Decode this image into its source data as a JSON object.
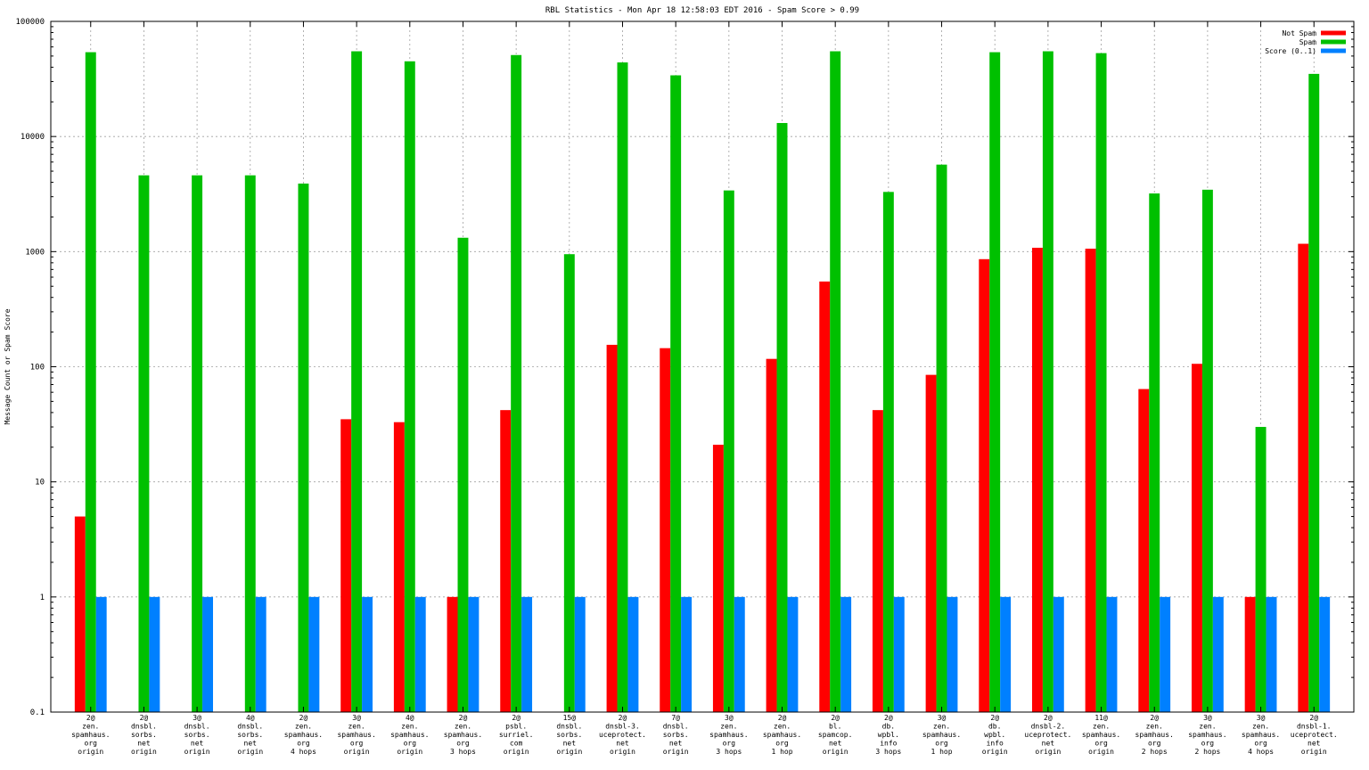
{
  "chart_data": {
    "type": "bar",
    "title": "RBL Statistics - Mon Apr 18 12:58:03 EDT 2016 - Spam Score > 0.99",
    "xlabel": "",
    "ylabel": "Message Count or Spam Score",
    "yscale": "log",
    "ylim": [
      0.1,
      100000
    ],
    "grid": true,
    "legend_position": "top-right",
    "y_ticks": [
      "0.1",
      "1",
      "10",
      "100",
      "1000",
      "10000",
      "100000"
    ],
    "categories": [
      [
        "2@",
        "zen.",
        "spamhaus.",
        "org",
        "origin"
      ],
      [
        "2@",
        "dnsbl.",
        "sorbs.",
        "net",
        "origin"
      ],
      [
        "3@",
        "dnsbl.",
        "sorbs.",
        "net",
        "origin"
      ],
      [
        "4@",
        "dnsbl.",
        "sorbs.",
        "net",
        "origin"
      ],
      [
        "2@",
        "zen.",
        "spamhaus.",
        "org",
        "4 hops"
      ],
      [
        "3@",
        "zen.",
        "spamhaus.",
        "org",
        "origin"
      ],
      [
        "4@",
        "zen.",
        "spamhaus.",
        "org",
        "origin"
      ],
      [
        "2@",
        "zen.",
        "spamhaus.",
        "org",
        "3 hops"
      ],
      [
        "2@",
        "psbl.",
        "surriel.",
        "com",
        "origin"
      ],
      [
        "15@",
        "dnsbl.",
        "sorbs.",
        "net",
        "origin"
      ],
      [
        "2@",
        "dnsbl-3.",
        "uceprotect.",
        "net",
        "origin"
      ],
      [
        "7@",
        "dnsbl.",
        "sorbs.",
        "net",
        "origin"
      ],
      [
        "3@",
        "zen.",
        "spamhaus.",
        "org",
        "3 hops"
      ],
      [
        "2@",
        "zen.",
        "spamhaus.",
        "org",
        "1 hop"
      ],
      [
        "2@",
        "bl.",
        "spamcop.",
        "net",
        "origin"
      ],
      [
        "2@",
        "db.",
        "wpbl.",
        "info",
        "3 hops"
      ],
      [
        "3@",
        "zen.",
        "spamhaus.",
        "org",
        "1 hop"
      ],
      [
        "2@",
        "db.",
        "wpbl.",
        "info",
        "origin"
      ],
      [
        "2@",
        "dnsbl-2.",
        "uceprotect.",
        "net",
        "origin"
      ],
      [
        "11@",
        "zen.",
        "spamhaus.",
        "org",
        "origin"
      ],
      [
        "2@",
        "zen.",
        "spamhaus.",
        "org",
        "2 hops"
      ],
      [
        "3@",
        "zen.",
        "spamhaus.",
        "org",
        "2 hops"
      ],
      [
        "3@",
        "zen.",
        "spamhaus.",
        "org",
        "4 hops"
      ],
      [
        "2@",
        "dnsbl-1.",
        "uceprotect.",
        "net",
        "origin"
      ]
    ],
    "series": [
      {
        "name": "Not Spam",
        "color": "#ff0000",
        "values": [
          5,
          null,
          null,
          null,
          null,
          35,
          33,
          1,
          42,
          null,
          155,
          145,
          21,
          117,
          550,
          42,
          85,
          860,
          1080,
          1060,
          64,
          106,
          1,
          1170
        ]
      },
      {
        "name": "Spam",
        "color": "#00c000",
        "values": [
          54000,
          4600,
          4600,
          4600,
          3900,
          55000,
          45000,
          1320,
          51000,
          950,
          44000,
          34000,
          3400,
          13100,
          55000,
          3300,
          5700,
          54000,
          55000,
          53000,
          3200,
          3450,
          30,
          35000
        ]
      },
      {
        "name": "Score (0..1)",
        "color": "#0080ff",
        "values": [
          1,
          1,
          1,
          1,
          1,
          1,
          1,
          1,
          1,
          1,
          1,
          1,
          1,
          1,
          1,
          1,
          1,
          1,
          1,
          1,
          1,
          1,
          1,
          1
        ]
      }
    ]
  }
}
